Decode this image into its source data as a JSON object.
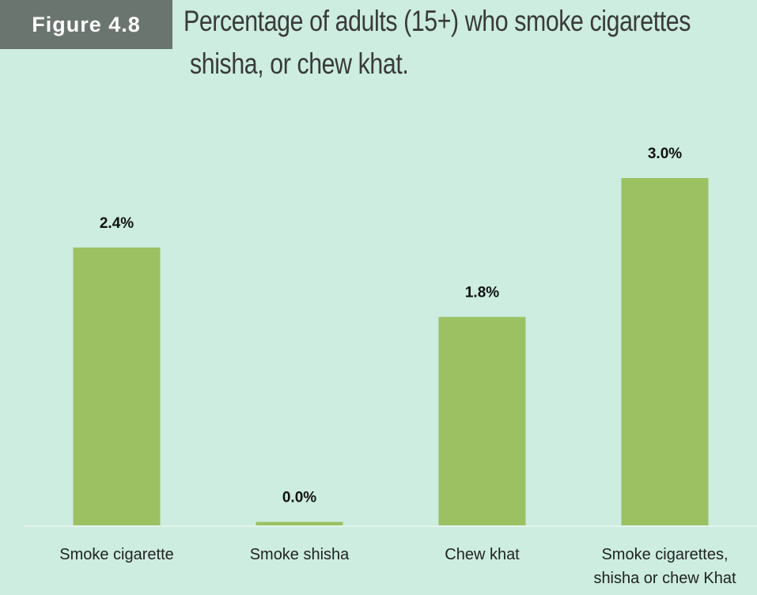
{
  "figure_label": "Figure 4.8",
  "chart_data": {
    "type": "bar",
    "title": [
      "Percentage of adults (15+) who smoke cigarettes",
      "shisha, or chew khat."
    ],
    "categories": [
      "Smoke cigarette",
      "Smoke shisha",
      "Chew khat",
      "Smoke cigarettes, shisha or chew Khat"
    ],
    "values": [
      2.4,
      0.03,
      1.8,
      3.0
    ],
    "value_labels": [
      "2.4%",
      "0.0%",
      "1.8%",
      "3.0%"
    ],
    "color": "#9bc162"
  }
}
